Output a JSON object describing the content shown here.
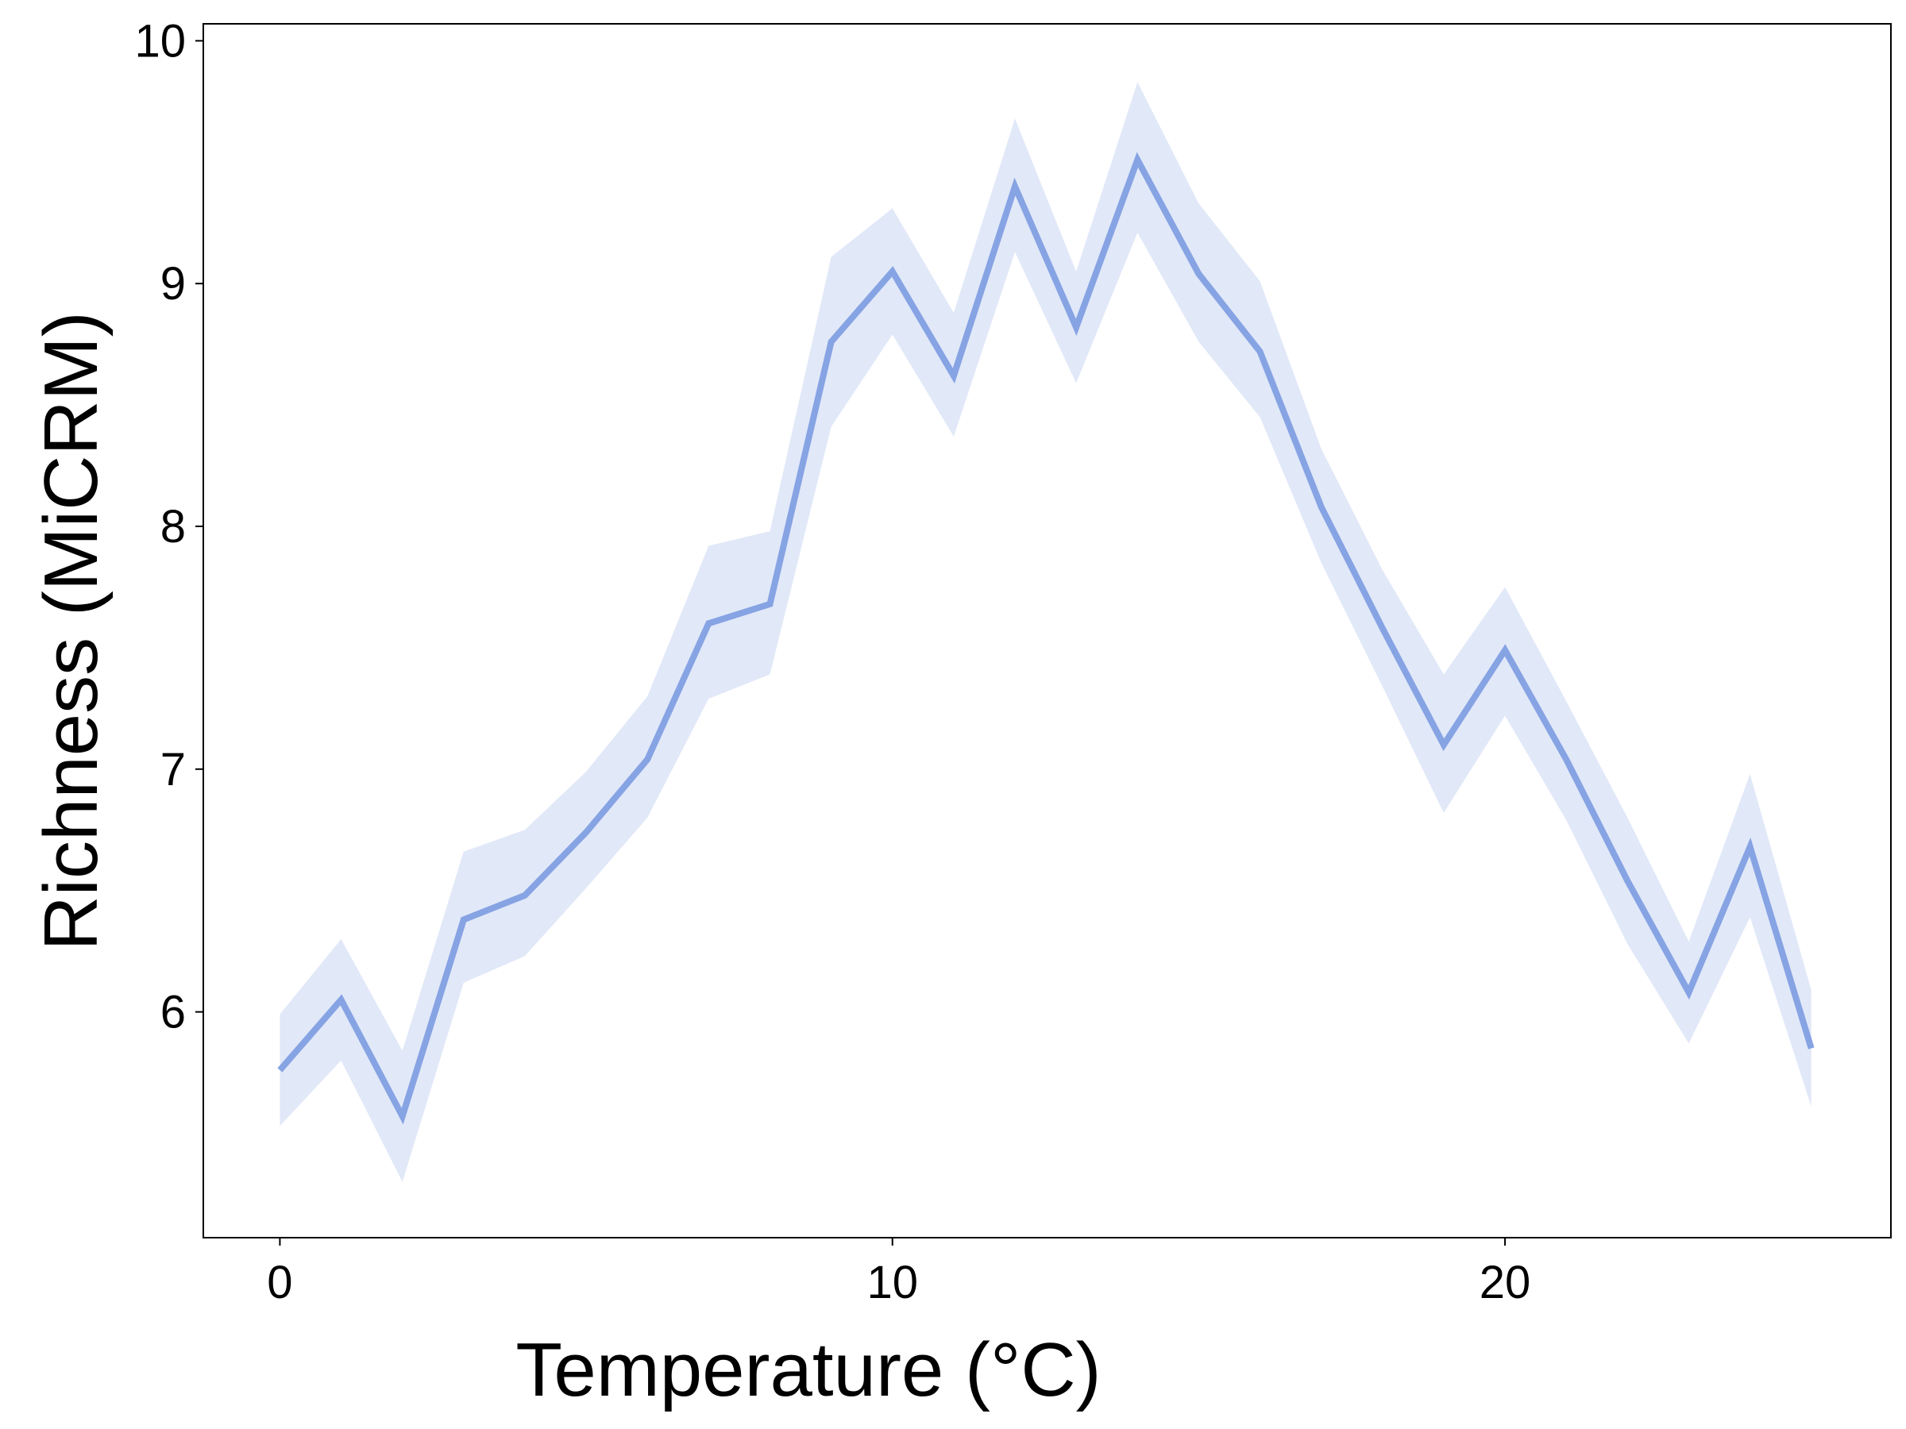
{
  "chart_data": {
    "type": "line",
    "title": "",
    "xlabel": "Temperature (°C)",
    "ylabel": "Richness (MiCRM)",
    "xlim": [
      -1.25,
      26.3
    ],
    "ylim": [
      5.07,
      10.07
    ],
    "xticks": [
      0,
      10,
      20
    ],
    "yticks": [
      6,
      7,
      8,
      9,
      10
    ],
    "grid": false,
    "legend": "none",
    "colors": {
      "line": "#86a3e3",
      "band": "#e1e8f8",
      "axis": "#000000"
    },
    "series": [
      {
        "x": [
          0,
          1,
          2,
          3,
          4,
          5,
          6,
          7,
          8,
          9,
          10,
          11,
          12,
          13,
          14,
          15,
          16,
          17,
          18,
          19,
          20,
          21,
          22,
          23,
          24,
          25
        ],
        "y": [
          5.76,
          6.05,
          5.57,
          6.38,
          6.48,
          6.74,
          7.04,
          7.6,
          7.68,
          8.76,
          9.05,
          8.62,
          9.4,
          8.82,
          9.51,
          9.04,
          8.72,
          8.08,
          7.58,
          7.1,
          7.49,
          7.04,
          6.54,
          6.08,
          6.68,
          5.85
        ],
        "lower": [
          5.53,
          5.8,
          5.3,
          6.12,
          6.23,
          6.51,
          6.8,
          7.29,
          7.39,
          8.41,
          8.79,
          8.37,
          9.13,
          8.59,
          9.21,
          8.76,
          8.45,
          7.85,
          7.34,
          6.82,
          7.22,
          6.79,
          6.28,
          5.87,
          6.39,
          5.61
        ],
        "upper": [
          5.99,
          6.3,
          5.84,
          6.66,
          6.75,
          6.99,
          7.3,
          7.92,
          7.98,
          9.11,
          9.31,
          8.88,
          9.68,
          9.05,
          9.83,
          9.33,
          9.01,
          8.32,
          7.82,
          7.39,
          7.75,
          7.28,
          6.8,
          6.29,
          6.98,
          6.09
        ]
      }
    ]
  }
}
